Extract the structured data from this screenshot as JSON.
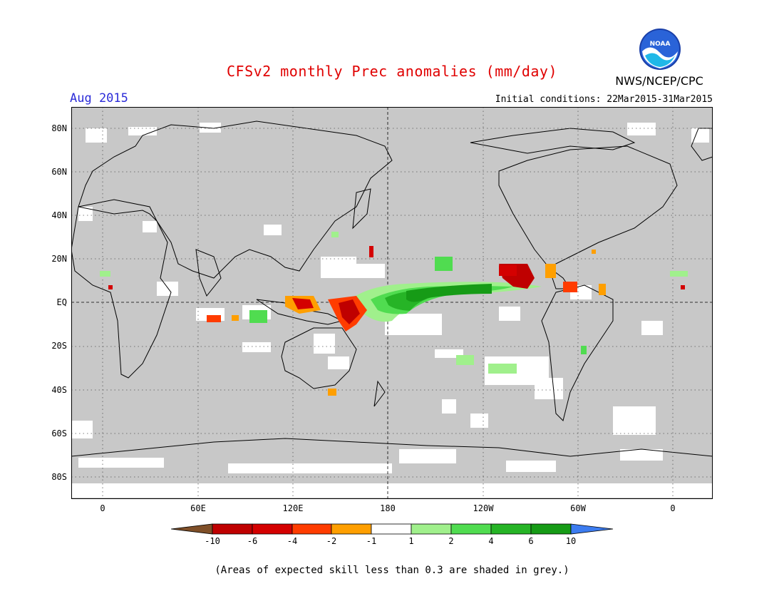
{
  "title": "CFSv2 monthly Prec anomalies (mm/day)",
  "month": "Aug 2015",
  "initial_conditions": "Initial conditions: 22Mar2015-31Mar2015",
  "agency": "NWS/NCEP/CPC",
  "logo_text": "NOAA",
  "lat_labels": [
    "80N",
    "60N",
    "40N",
    "20N",
    "EQ",
    "20S",
    "40S",
    "60S",
    "80S"
  ],
  "lon_labels": [
    "0",
    "60E",
    "120E",
    "180",
    "120W",
    "60W",
    "0"
  ],
  "colorbar": {
    "labels": [
      "-10",
      "-6",
      "-4",
      "-2",
      "-1",
      "1",
      "2",
      "4",
      "6",
      "10"
    ],
    "colors": {
      "lt_minus10": "#7f4f28",
      "m10_m6": "#bf0000",
      "m6_m4": "#d40000",
      "m4_m2": "#ff3c00",
      "m2_m1": "#ff9f00",
      "m1_1": "#ffffff",
      "1_2": "#a0f08c",
      "2_4": "#50dc50",
      "4_6": "#26b426",
      "6_10": "#169b16",
      "gt_10": "#3c7cf0"
    }
  },
  "skill_mask_color": "#c8c8c8",
  "note": "(Areas of expected skill less than 0.3 are shaded in grey.)"
}
